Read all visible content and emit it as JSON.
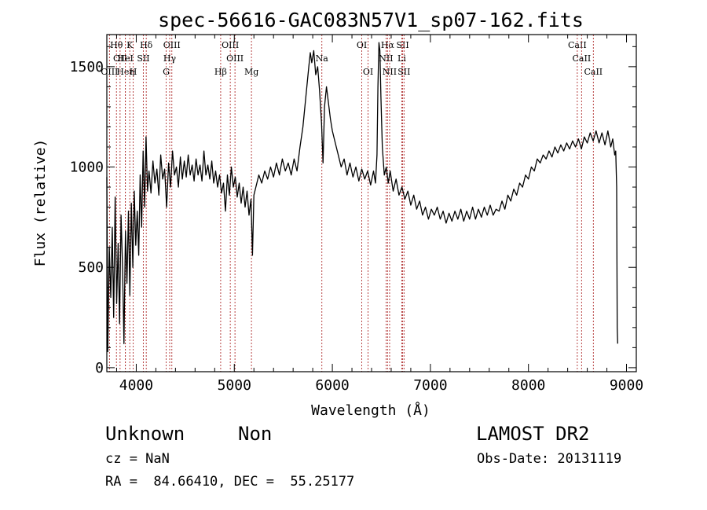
{
  "chart_data": {
    "type": "line",
    "title": "spec-56616-GAC083N57V1_sp07-162.fits",
    "xlabel": "Wavelength (Å)",
    "ylabel": "Flux (relative)",
    "xlim": [
      3700,
      9100
    ],
    "ylim": [
      -20,
      1660
    ],
    "xticks": [
      4000,
      5000,
      6000,
      7000,
      8000,
      9000
    ],
    "yticks": [
      0,
      500,
      1000,
      1500
    ],
    "grid": false,
    "series": [
      {
        "points": [
          [
            3700,
            950
          ],
          [
            3710,
            80
          ],
          [
            3725,
            600
          ],
          [
            3740,
            350
          ],
          [
            3755,
            700
          ],
          [
            3770,
            250
          ],
          [
            3785,
            850
          ],
          [
            3800,
            320
          ],
          [
            3815,
            620
          ],
          [
            3830,
            220
          ],
          [
            3845,
            760
          ],
          [
            3860,
            500
          ],
          [
            3875,
            120
          ],
          [
            3890,
            680
          ],
          [
            3905,
            420
          ],
          [
            3920,
            780
          ],
          [
            3935,
            360
          ],
          [
            3950,
            820
          ],
          [
            3965,
            500
          ],
          [
            3980,
            880
          ],
          [
            3995,
            610
          ],
          [
            4010,
            780
          ],
          [
            4025,
            560
          ],
          [
            4040,
            960
          ],
          [
            4055,
            700
          ],
          [
            4070,
            1080
          ],
          [
            4085,
            800
          ],
          [
            4100,
            1150
          ],
          [
            4115,
            880
          ],
          [
            4130,
            980
          ],
          [
            4150,
            870
          ],
          [
            4170,
            1030
          ],
          [
            4190,
            920
          ],
          [
            4210,
            990
          ],
          [
            4230,
            860
          ],
          [
            4250,
            1060
          ],
          [
            4270,
            940
          ],
          [
            4290,
            990
          ],
          [
            4310,
            800
          ],
          [
            4330,
            1020
          ],
          [
            4350,
            900
          ],
          [
            4370,
            1080
          ],
          [
            4390,
            960
          ],
          [
            4410,
            1000
          ],
          [
            4430,
            900
          ],
          [
            4450,
            1050
          ],
          [
            4470,
            940
          ],
          [
            4490,
            1030
          ],
          [
            4510,
            950
          ],
          [
            4530,
            1060
          ],
          [
            4550,
            960
          ],
          [
            4570,
            1010
          ],
          [
            4590,
            930
          ],
          [
            4610,
            1040
          ],
          [
            4630,
            960
          ],
          [
            4650,
            1010
          ],
          [
            4670,
            930
          ],
          [
            4690,
            1080
          ],
          [
            4710,
            960
          ],
          [
            4730,
            1010
          ],
          [
            4750,
            940
          ],
          [
            4770,
            1030
          ],
          [
            4790,
            920
          ],
          [
            4810,
            980
          ],
          [
            4830,
            900
          ],
          [
            4850,
            960
          ],
          [
            4870,
            870
          ],
          [
            4890,
            920
          ],
          [
            4910,
            780
          ],
          [
            4930,
            960
          ],
          [
            4950,
            860
          ],
          [
            4970,
            1000
          ],
          [
            4990,
            900
          ],
          [
            5010,
            950
          ],
          [
            5030,
            850
          ],
          [
            5050,
            920
          ],
          [
            5070,
            820
          ],
          [
            5090,
            900
          ],
          [
            5110,
            800
          ],
          [
            5130,
            880
          ],
          [
            5150,
            760
          ],
          [
            5170,
            840
          ],
          [
            5185,
            560
          ],
          [
            5200,
            860
          ],
          [
            5220,
            900
          ],
          [
            5250,
            960
          ],
          [
            5280,
            920
          ],
          [
            5310,
            980
          ],
          [
            5340,
            940
          ],
          [
            5370,
            1000
          ],
          [
            5400,
            950
          ],
          [
            5430,
            1020
          ],
          [
            5460,
            960
          ],
          [
            5490,
            1040
          ],
          [
            5520,
            980
          ],
          [
            5550,
            1020
          ],
          [
            5580,
            960
          ],
          [
            5610,
            1040
          ],
          [
            5640,
            980
          ],
          [
            5670,
            1100
          ],
          [
            5700,
            1200
          ],
          [
            5720,
            1300
          ],
          [
            5740,
            1400
          ],
          [
            5760,
            1500
          ],
          [
            5775,
            1570
          ],
          [
            5790,
            1520
          ],
          [
            5810,
            1580
          ],
          [
            5830,
            1460
          ],
          [
            5850,
            1500
          ],
          [
            5870,
            1380
          ],
          [
            5890,
            1220
          ],
          [
            5905,
            1020
          ],
          [
            5920,
            1300
          ],
          [
            5940,
            1400
          ],
          [
            5960,
            1320
          ],
          [
            5980,
            1240
          ],
          [
            6000,
            1180
          ],
          [
            6030,
            1120
          ],
          [
            6060,
            1060
          ],
          [
            6090,
            1000
          ],
          [
            6120,
            1040
          ],
          [
            6150,
            960
          ],
          [
            6180,
            1020
          ],
          [
            6210,
            950
          ],
          [
            6240,
            1000
          ],
          [
            6270,
            930
          ],
          [
            6300,
            990
          ],
          [
            6330,
            940
          ],
          [
            6360,
            980
          ],
          [
            6390,
            910
          ],
          [
            6420,
            980
          ],
          [
            6440,
            920
          ],
          [
            6455,
            1060
          ],
          [
            6465,
            1400
          ],
          [
            6475,
            1620
          ],
          [
            6485,
            1580
          ],
          [
            6495,
            1350
          ],
          [
            6510,
            1100
          ],
          [
            6530,
            960
          ],
          [
            6550,
            1000
          ],
          [
            6570,
            920
          ],
          [
            6590,
            980
          ],
          [
            6620,
            880
          ],
          [
            6650,
            940
          ],
          [
            6680,
            860
          ],
          [
            6710,
            900
          ],
          [
            6740,
            840
          ],
          [
            6770,
            880
          ],
          [
            6800,
            810
          ],
          [
            6830,
            860
          ],
          [
            6860,
            790
          ],
          [
            6890,
            830
          ],
          [
            6920,
            760
          ],
          [
            6950,
            800
          ],
          [
            6980,
            740
          ],
          [
            7010,
            790
          ],
          [
            7040,
            760
          ],
          [
            7070,
            800
          ],
          [
            7100,
            740
          ],
          [
            7130,
            780
          ],
          [
            7160,
            720
          ],
          [
            7190,
            770
          ],
          [
            7220,
            730
          ],
          [
            7250,
            780
          ],
          [
            7280,
            740
          ],
          [
            7310,
            790
          ],
          [
            7340,
            730
          ],
          [
            7370,
            780
          ],
          [
            7400,
            740
          ],
          [
            7430,
            800
          ],
          [
            7460,
            740
          ],
          [
            7490,
            790
          ],
          [
            7520,
            750
          ],
          [
            7550,
            800
          ],
          [
            7580,
            760
          ],
          [
            7610,
            810
          ],
          [
            7640,
            760
          ],
          [
            7670,
            790
          ],
          [
            7700,
            780
          ],
          [
            7730,
            830
          ],
          [
            7760,
            790
          ],
          [
            7790,
            860
          ],
          [
            7820,
            830
          ],
          [
            7850,
            890
          ],
          [
            7880,
            860
          ],
          [
            7910,
            920
          ],
          [
            7940,
            900
          ],
          [
            7970,
            960
          ],
          [
            8000,
            940
          ],
          [
            8030,
            1000
          ],
          [
            8060,
            980
          ],
          [
            8090,
            1040
          ],
          [
            8120,
            1020
          ],
          [
            8150,
            1060
          ],
          [
            8180,
            1040
          ],
          [
            8210,
            1080
          ],
          [
            8240,
            1050
          ],
          [
            8270,
            1100
          ],
          [
            8300,
            1070
          ],
          [
            8330,
            1110
          ],
          [
            8360,
            1080
          ],
          [
            8390,
            1120
          ],
          [
            8420,
            1090
          ],
          [
            8450,
            1130
          ],
          [
            8480,
            1100
          ],
          [
            8510,
            1140
          ],
          [
            8540,
            1090
          ],
          [
            8570,
            1150
          ],
          [
            8600,
            1120
          ],
          [
            8630,
            1170
          ],
          [
            8660,
            1130
          ],
          [
            8690,
            1180
          ],
          [
            8720,
            1120
          ],
          [
            8750,
            1170
          ],
          [
            8780,
            1110
          ],
          [
            8810,
            1180
          ],
          [
            8840,
            1100
          ],
          [
            8860,
            1140
          ],
          [
            8880,
            1060
          ],
          [
            8890,
            1080
          ],
          [
            8900,
            900
          ],
          [
            8905,
            200
          ],
          [
            8910,
            120
          ]
        ]
      }
    ],
    "line_markers": [
      {
        "wavelength": 3798,
        "label": "Hθ",
        "row": 0
      },
      {
        "wavelength": 3835,
        "label": "OII",
        "row": 1
      },
      {
        "wavelength": 3727,
        "label": "OIII",
        "row": 2
      },
      {
        "wavelength": 3889,
        "label": "Heη",
        "row": 2
      },
      {
        "wavelength": 3934,
        "label": "K",
        "row": 0
      },
      {
        "wavelength": 3889,
        "label": "HeI",
        "row": 1
      },
      {
        "wavelength": 3969,
        "label": "H",
        "row": 2
      },
      {
        "wavelength": 4102,
        "label": "Hδ",
        "row": 0
      },
      {
        "wavelength": 4072,
        "label": "SII",
        "row": 1
      },
      {
        "wavelength": 4363,
        "label": "OIII",
        "row": 0
      },
      {
        "wavelength": 4341,
        "label": "Hγ",
        "row": 1
      },
      {
        "wavelength": 4305,
        "label": "G",
        "row": 2
      },
      {
        "wavelength": 4861,
        "label": "Hβ",
        "row": 2
      },
      {
        "wavelength": 4959,
        "label": "OIII",
        "row": 0
      },
      {
        "wavelength": 5007,
        "label": "OIII",
        "row": 1
      },
      {
        "wavelength": 5175,
        "label": "Mg",
        "row": 2
      },
      {
        "wavelength": 5893,
        "label": "Na",
        "row": 1
      },
      {
        "wavelength": 6300,
        "label": "OI",
        "row": 0
      },
      {
        "wavelength": 6364,
        "label": "OI",
        "row": 2
      },
      {
        "wavelength": 6563,
        "label": "Hα",
        "row": 0
      },
      {
        "wavelength": 6548,
        "label": "NII",
        "row": 1
      },
      {
        "wavelength": 6584,
        "label": "NII",
        "row": 2
      },
      {
        "wavelength": 6717,
        "label": "SII",
        "row": 0
      },
      {
        "wavelength": 6708,
        "label": "Li",
        "row": 1
      },
      {
        "wavelength": 6731,
        "label": "SII",
        "row": 2
      },
      {
        "wavelength": 8498,
        "label": "CaII",
        "row": 0
      },
      {
        "wavelength": 8542,
        "label": "CaII",
        "row": 1
      },
      {
        "wavelength": 8662,
        "label": "CaII",
        "row": 2
      }
    ]
  },
  "info": {
    "class_label": "Unknown",
    "subclass_label": "Non",
    "cz_text": "cz = NaN",
    "coord_text": "RA =  84.66410, DEC =  55.25177",
    "survey": "LAMOST DR2",
    "obs_date_text": "Obs-Date: 20131119"
  },
  "colors": {
    "spectrum": "#000000",
    "line_marker": "#b03030",
    "axes": "#000000"
  }
}
